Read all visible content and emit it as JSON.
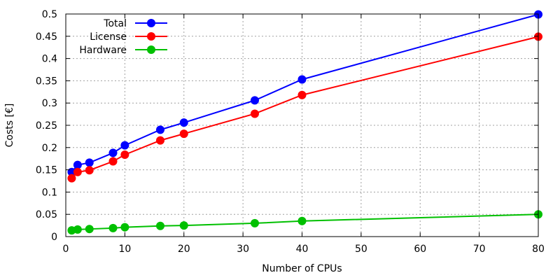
{
  "chart_data": {
    "type": "line",
    "xlabel": "Number of CPUs",
    "ylabel": "Costs [€]",
    "xlim": [
      0,
      80
    ],
    "ylim": [
      0,
      0.5
    ],
    "xticks": [
      0,
      10,
      20,
      30,
      40,
      50,
      60,
      70,
      80
    ],
    "yticks": [
      0,
      0.05,
      0.1,
      0.15,
      0.2,
      0.25,
      0.3,
      0.35,
      0.4,
      0.45,
      0.5
    ],
    "xtick_labels": [
      "0",
      "10",
      "20",
      "30",
      "40",
      "50",
      "60",
      "70",
      "80"
    ],
    "ytick_labels": [
      "0",
      "0.05",
      "0.1",
      "0.15",
      "0.2",
      "0.25",
      "0.3",
      "0.35",
      "0.4",
      "0.45",
      "0.5"
    ],
    "grid": true,
    "legend_position": "top-left",
    "x": [
      1,
      2,
      4,
      8,
      10,
      16,
      20,
      32,
      40,
      80
    ],
    "series": [
      {
        "name": "Total",
        "color": "#0000ff",
        "values": [
          0.145,
          0.161,
          0.166,
          0.188,
          0.205,
          0.24,
          0.256,
          0.306,
          0.353,
          0.499
        ]
      },
      {
        "name": "License",
        "color": "#ff0000",
        "values": [
          0.131,
          0.145,
          0.149,
          0.169,
          0.184,
          0.216,
          0.231,
          0.276,
          0.318,
          0.449
        ]
      },
      {
        "name": "Hardware",
        "color": "#00c000",
        "values": [
          0.014,
          0.016,
          0.017,
          0.019,
          0.021,
          0.024,
          0.025,
          0.03,
          0.035,
          0.05
        ]
      }
    ]
  }
}
